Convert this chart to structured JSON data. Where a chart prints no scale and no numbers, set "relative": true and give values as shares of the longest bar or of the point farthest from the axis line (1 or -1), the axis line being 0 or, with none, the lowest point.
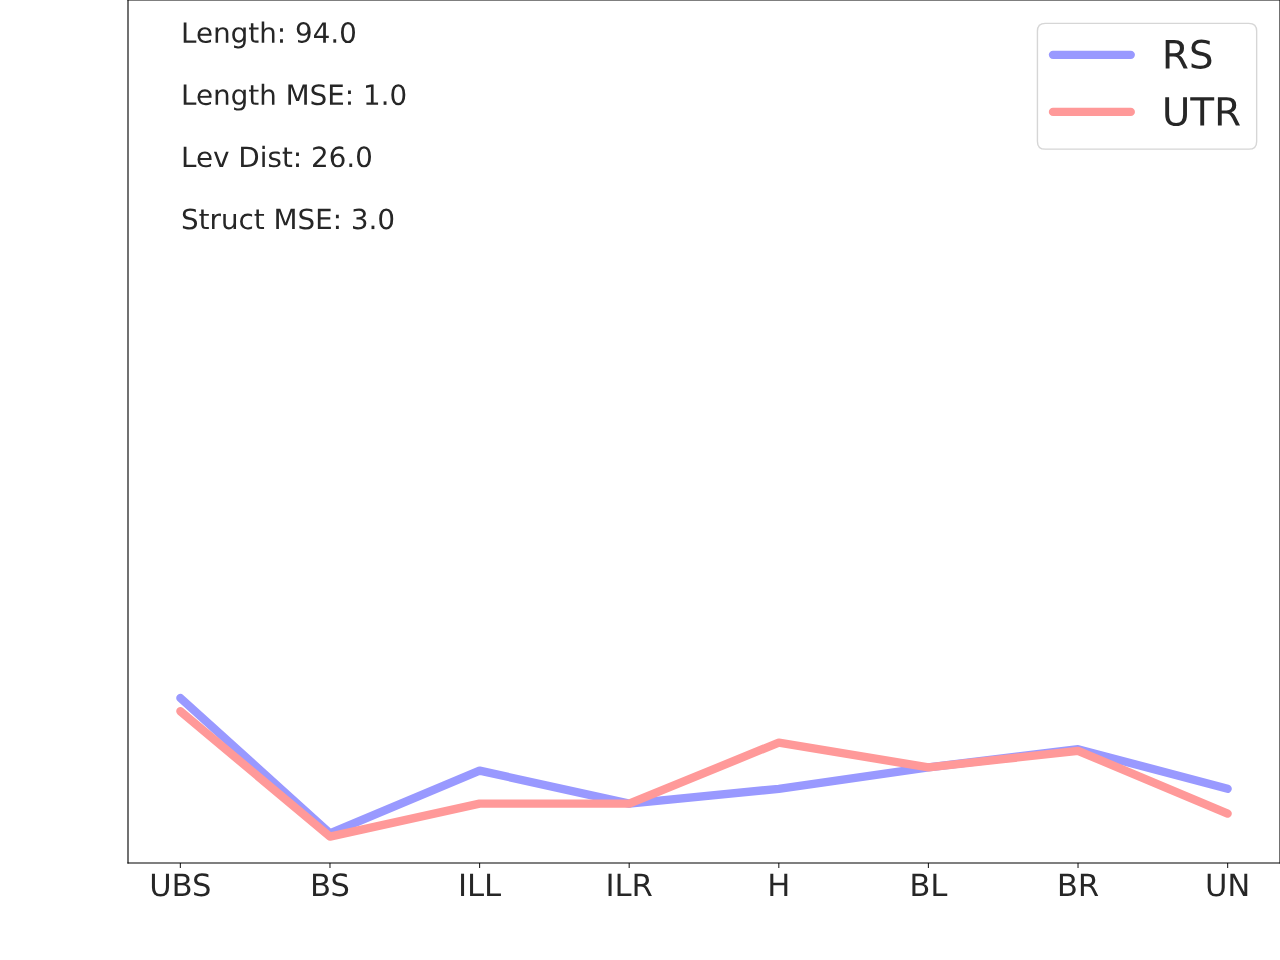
{
  "chart_data": {
    "type": "line",
    "relative": true,
    "categories": [
      "UBS",
      "BS",
      "ILL",
      "ILR",
      "H",
      "BL",
      "BR",
      "UN"
    ],
    "series": [
      {
        "name": "RS",
        "color": "#9999ff",
        "values": [
          1,
          0.18,
          0.56,
          0.36,
          0.45,
          0.58,
          0.69,
          0.45
        ]
      },
      {
        "name": "UTR",
        "color": "#ff9999",
        "values": [
          0.92,
          0.16,
          0.36,
          0.36,
          0.73,
          0.58,
          0.68,
          0.3
        ]
      }
    ],
    "annotations": [
      "Length: 94.0",
      "Length MSE: 1.0",
      "Lev Dist: 26.0",
      "Struct MSE: 3.0"
    ],
    "legend": "top right",
    "grid": false,
    "marker": "none",
    "line_style": "solid"
  }
}
